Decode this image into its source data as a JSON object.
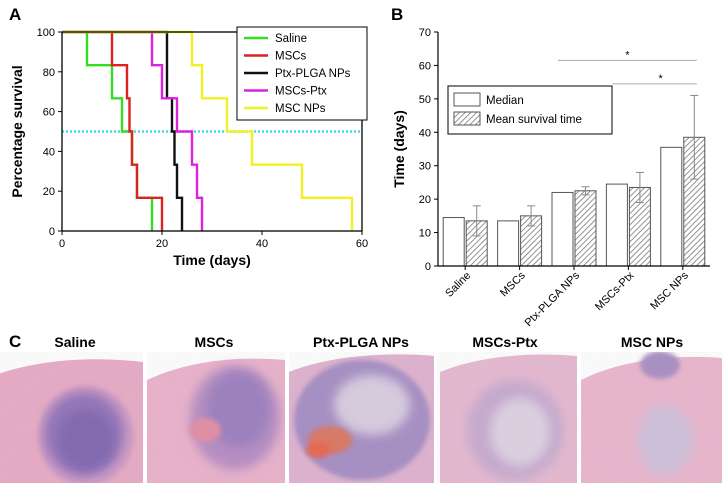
{
  "chart_data": [
    {
      "panel": "A",
      "type": "line",
      "step": true,
      "xlabel": "Time (days)",
      "ylabel": "Percentage survival",
      "xlim": [
        0,
        60
      ],
      "ylim": [
        0,
        100
      ],
      "xticks": [
        0,
        20,
        40,
        60
      ],
      "yticks": [
        0,
        20,
        40,
        60,
        80,
        100
      ],
      "reference_line": {
        "y": 50,
        "color": "#45d7ea",
        "style": "dotted"
      },
      "legend_position": "top-right",
      "series": [
        {
          "name": "Saline",
          "color": "#33dd22",
          "points": [
            [
              0,
              100
            ],
            [
              5,
              100
            ],
            [
              5,
              83.3
            ],
            [
              10,
              83.3
            ],
            [
              10,
              66.7
            ],
            [
              12,
              66.7
            ],
            [
              12,
              50
            ],
            [
              14,
              50
            ],
            [
              14,
              33.3
            ],
            [
              15,
              33.3
            ],
            [
              15,
              16.7
            ],
            [
              18,
              16.7
            ],
            [
              18,
              0
            ]
          ]
        },
        {
          "name": "MSCs",
          "color": "#dd2222",
          "points": [
            [
              0,
              100
            ],
            [
              10,
              100
            ],
            [
              10,
              83.3
            ],
            [
              13,
              83.3
            ],
            [
              13,
              66.7
            ],
            [
              13.5,
              66.7
            ],
            [
              13.5,
              50
            ],
            [
              14,
              50
            ],
            [
              14,
              33.3
            ],
            [
              15,
              33.3
            ],
            [
              15,
              16.7
            ],
            [
              20,
              16.7
            ],
            [
              20,
              0
            ]
          ]
        },
        {
          "name": "Ptx-PLGA NPs",
          "color": "#111111",
          "points": [
            [
              0,
              100
            ],
            [
              21,
              100
            ],
            [
              21,
              66.7
            ],
            [
              22,
              66.7
            ],
            [
              22,
              50
            ],
            [
              22.5,
              50
            ],
            [
              22.5,
              33.3
            ],
            [
              23,
              33.3
            ],
            [
              23,
              16.7
            ],
            [
              24,
              16.7
            ],
            [
              24,
              0
            ]
          ]
        },
        {
          "name": "MSCs-Ptx",
          "color": "#dd22dd",
          "points": [
            [
              0,
              100
            ],
            [
              18,
              100
            ],
            [
              18,
              83.3
            ],
            [
              20,
              83.3
            ],
            [
              20,
              66.7
            ],
            [
              23,
              66.7
            ],
            [
              23,
              50
            ],
            [
              26,
              50
            ],
            [
              26,
              33.3
            ],
            [
              27,
              33.3
            ],
            [
              27,
              16.7
            ],
            [
              28,
              16.7
            ],
            [
              28,
              0
            ]
          ]
        },
        {
          "name": "MSC NPs",
          "color": "#f2f222",
          "points": [
            [
              0,
              100
            ],
            [
              26,
              100
            ],
            [
              26,
              83.3
            ],
            [
              28,
              83.3
            ],
            [
              28,
              66.7
            ],
            [
              33,
              66.7
            ],
            [
              33,
              50
            ],
            [
              38,
              50
            ],
            [
              38,
              33.3
            ],
            [
              48,
              33.3
            ],
            [
              48,
              16.7
            ],
            [
              58,
              16.7
            ],
            [
              58,
              0
            ]
          ]
        }
      ]
    },
    {
      "panel": "B",
      "type": "bar",
      "ylabel": "Time (days)",
      "ylim": [
        0,
        70
      ],
      "yticks": [
        0,
        10,
        20,
        30,
        40,
        50,
        60,
        70
      ],
      "categories": [
        "Saline",
        "MSCs",
        "Ptx-PLGA NPs",
        "MSCs-Ptx",
        "MSC NPs"
      ],
      "legend_position": "top-left",
      "series": [
        {
          "name": "Median",
          "fill": "plain",
          "values": [
            14.5,
            13.5,
            22,
            24.5,
            35.5
          ],
          "errors": [
            0,
            0,
            0,
            0,
            0
          ]
        },
        {
          "name": "Mean survival time",
          "fill": "hatched",
          "values": [
            13.5,
            15,
            22.5,
            23.5,
            38.5
          ],
          "errors": [
            4.5,
            3,
            1.2,
            4.5,
            12.5
          ]
        }
      ],
      "significance": [
        {
          "from": "Ptx-PLGA NPs",
          "to": "MSC NPs",
          "y": 61.5,
          "label": "*"
        },
        {
          "from": "MSCs-Ptx",
          "to": "MSC NPs",
          "y": 54.5,
          "label": "*"
        }
      ]
    }
  ],
  "panel_letters": {
    "a": "A",
    "b": "B",
    "c": "C"
  },
  "histology": {
    "panels": [
      {
        "label": "Saline"
      },
      {
        "label": "MSCs"
      },
      {
        "label": "Ptx-PLGA NPs"
      },
      {
        "label": "MSCs-Ptx"
      },
      {
        "label": "MSC NPs"
      }
    ]
  }
}
